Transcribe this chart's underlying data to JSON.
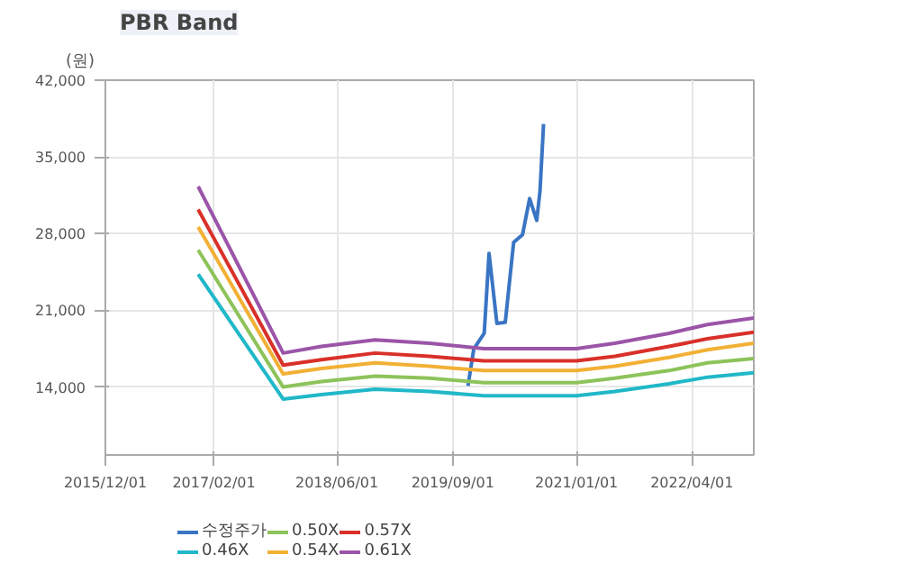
{
  "chart_data": {
    "type": "line",
    "title": "PBR Band",
    "ylabel": "(원)",
    "xlim": [
      "2015-12-01",
      "2022-12-01"
    ],
    "ylim": [
      7800,
      42000
    ],
    "xticks": [
      {
        "value": "2015-12-01",
        "label": "2015/12/01"
      },
      {
        "value": "2017-02-01",
        "label": "2017/02/01"
      },
      {
        "value": "2018-06-01",
        "label": "2018/06/01"
      },
      {
        "value": "2019-09-01",
        "label": "2019/09/01"
      },
      {
        "value": "2021-01-01",
        "label": "2021/01/01"
      },
      {
        "value": "2022-04-01",
        "label": "2022/04/01"
      }
    ],
    "yticks": [
      {
        "value": 14000,
        "label": "14,000"
      },
      {
        "value": 21000,
        "label": "21,000"
      },
      {
        "value": 28000,
        "label": "28,000"
      },
      {
        "value": 35000,
        "label": "35,000"
      },
      {
        "value": 42000,
        "label": "42,000"
      }
    ],
    "grid": true,
    "legend": "bottom",
    "marker": "none",
    "line_style": "solid",
    "series": [
      {
        "name": "수정주가",
        "color": "#3a75c4",
        "x": [
          "2019-10-31",
          "2019-11-23",
          "2020-01-03",
          "2020-01-22",
          "2020-02-22",
          "2020-03-26",
          "2020-04-28",
          "2020-06-02",
          "2020-06-30",
          "2020-07-28",
          "2020-08-10",
          "2020-08-24"
        ],
        "values": [
          14100,
          17500,
          18900,
          26200,
          19800,
          19900,
          27200,
          27900,
          31200,
          29200,
          31900,
          38000
        ]
      },
      {
        "name": "0.46X",
        "color": "#20b8c8",
        "x": [
          "2016-12-01",
          "2017-11-01",
          "2018-04-01",
          "2018-10-30",
          "2019-06-01",
          "2020-01-01",
          "2021-01-01",
          "2021-06-01",
          "2022-01-01",
          "2022-06-01",
          "2022-12-01"
        ],
        "values": [
          24300,
          12900,
          13300,
          13800,
          13600,
          13200,
          13200,
          13600,
          14300,
          14900,
          15300
        ]
      },
      {
        "name": "0.50X",
        "color": "#8dc35a",
        "x": [
          "2016-12-01",
          "2017-11-01",
          "2018-04-01",
          "2018-10-30",
          "2019-06-01",
          "2020-01-01",
          "2021-01-01",
          "2021-06-01",
          "2022-01-01",
          "2022-06-01",
          "2022-12-01"
        ],
        "values": [
          26500,
          14000,
          14500,
          15000,
          14800,
          14400,
          14400,
          14800,
          15500,
          16200,
          16600
        ]
      },
      {
        "name": "0.54X",
        "color": "#f2b035",
        "x": [
          "2016-12-01",
          "2017-11-01",
          "2018-04-01",
          "2018-10-30",
          "2019-06-01",
          "2020-01-01",
          "2021-01-01",
          "2021-06-01",
          "2022-01-01",
          "2022-06-01",
          "2022-12-01"
        ],
        "values": [
          28600,
          15200,
          15700,
          16200,
          15900,
          15500,
          15500,
          15900,
          16700,
          17400,
          18000
        ]
      },
      {
        "name": "0.57X",
        "color": "#d9302a",
        "x": [
          "2016-12-01",
          "2017-11-01",
          "2018-04-01",
          "2018-10-30",
          "2019-06-01",
          "2020-01-01",
          "2021-01-01",
          "2021-06-01",
          "2022-01-01",
          "2022-06-01",
          "2022-12-01"
        ],
        "values": [
          30200,
          16000,
          16500,
          17100,
          16800,
          16400,
          16400,
          16800,
          17700,
          18400,
          19000
        ]
      },
      {
        "name": "0.61X",
        "color": "#9b55a8",
        "x": [
          "2016-12-01",
          "2017-11-01",
          "2018-04-01",
          "2018-10-30",
          "2019-06-01",
          "2020-01-01",
          "2021-01-01",
          "2021-06-01",
          "2022-01-01",
          "2022-06-01",
          "2022-12-01"
        ],
        "values": [
          32300,
          17100,
          17700,
          18300,
          18000,
          17500,
          17500,
          18000,
          18900,
          19700,
          20300
        ]
      }
    ]
  }
}
